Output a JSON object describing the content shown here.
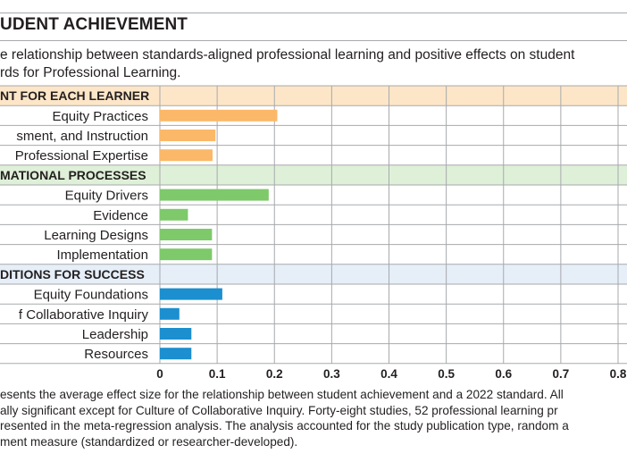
{
  "title": "UDENT ACHIEVEMENT",
  "subtitle": [
    "e relationship between standards-aligned professional learning and positive effects on student",
    "rds for Professional Learning."
  ],
  "caption": [
    "esents the average effect size for the relationship between student achievement and a 2022 standard. All",
    "ally significant except for Culture of Collaborative Inquiry. Forty-eight studies, 52 professional learning pr",
    "resented in the meta-regression analysis. The analysis accounted for the study publication type, random a",
    "ment measure (standardized or researcher-developed)."
  ],
  "colors": {
    "group_1": "#fbb868",
    "group_2": "#7ec96a",
    "group_3": "#1b8fcf",
    "group_1_band": "#fde6c8",
    "group_2_band": "#dff0d8",
    "group_3_band": "#e6eef8"
  },
  "chart_data": {
    "type": "bar",
    "orientation": "horizontal",
    "xlim": [
      0,
      0.8
    ],
    "x_ticks": [
      "0",
      "0.1",
      "0.2",
      "0.3",
      "0.4",
      "0.5",
      "0.6",
      "0.7",
      "0.8"
    ],
    "grid": true,
    "groups": [
      {
        "name": "NT FOR EACH LEARNER",
        "color_key": "group_1",
        "band_key": "group_1_band",
        "items": [
          {
            "label": "Equity Practices",
            "value": 0.205
          },
          {
            "label": "sment, and Instruction",
            "value": 0.097
          },
          {
            "label": "Professional Expertise",
            "value": 0.092
          }
        ]
      },
      {
        "name": "MATIONAL  PROCESSES",
        "color_key": "group_2",
        "band_key": "group_2_band",
        "items": [
          {
            "label": "Equity Drivers",
            "value": 0.19
          },
          {
            "label": "Evidence",
            "value": 0.049
          },
          {
            "label": "Learning Designs",
            "value": 0.091
          },
          {
            "label": "Implementation",
            "value": 0.091
          }
        ]
      },
      {
        "name": "DITIONS FOR SUCCESS",
        "color_key": "group_3",
        "band_key": "group_3_band",
        "items": [
          {
            "label": "Equity Foundations",
            "value": 0.109
          },
          {
            "label": "f Collaborative Inquiry",
            "value": 0.034
          },
          {
            "label": "Leadership",
            "value": 0.055
          },
          {
            "label": "Resources",
            "value": 0.055
          }
        ]
      }
    ]
  }
}
